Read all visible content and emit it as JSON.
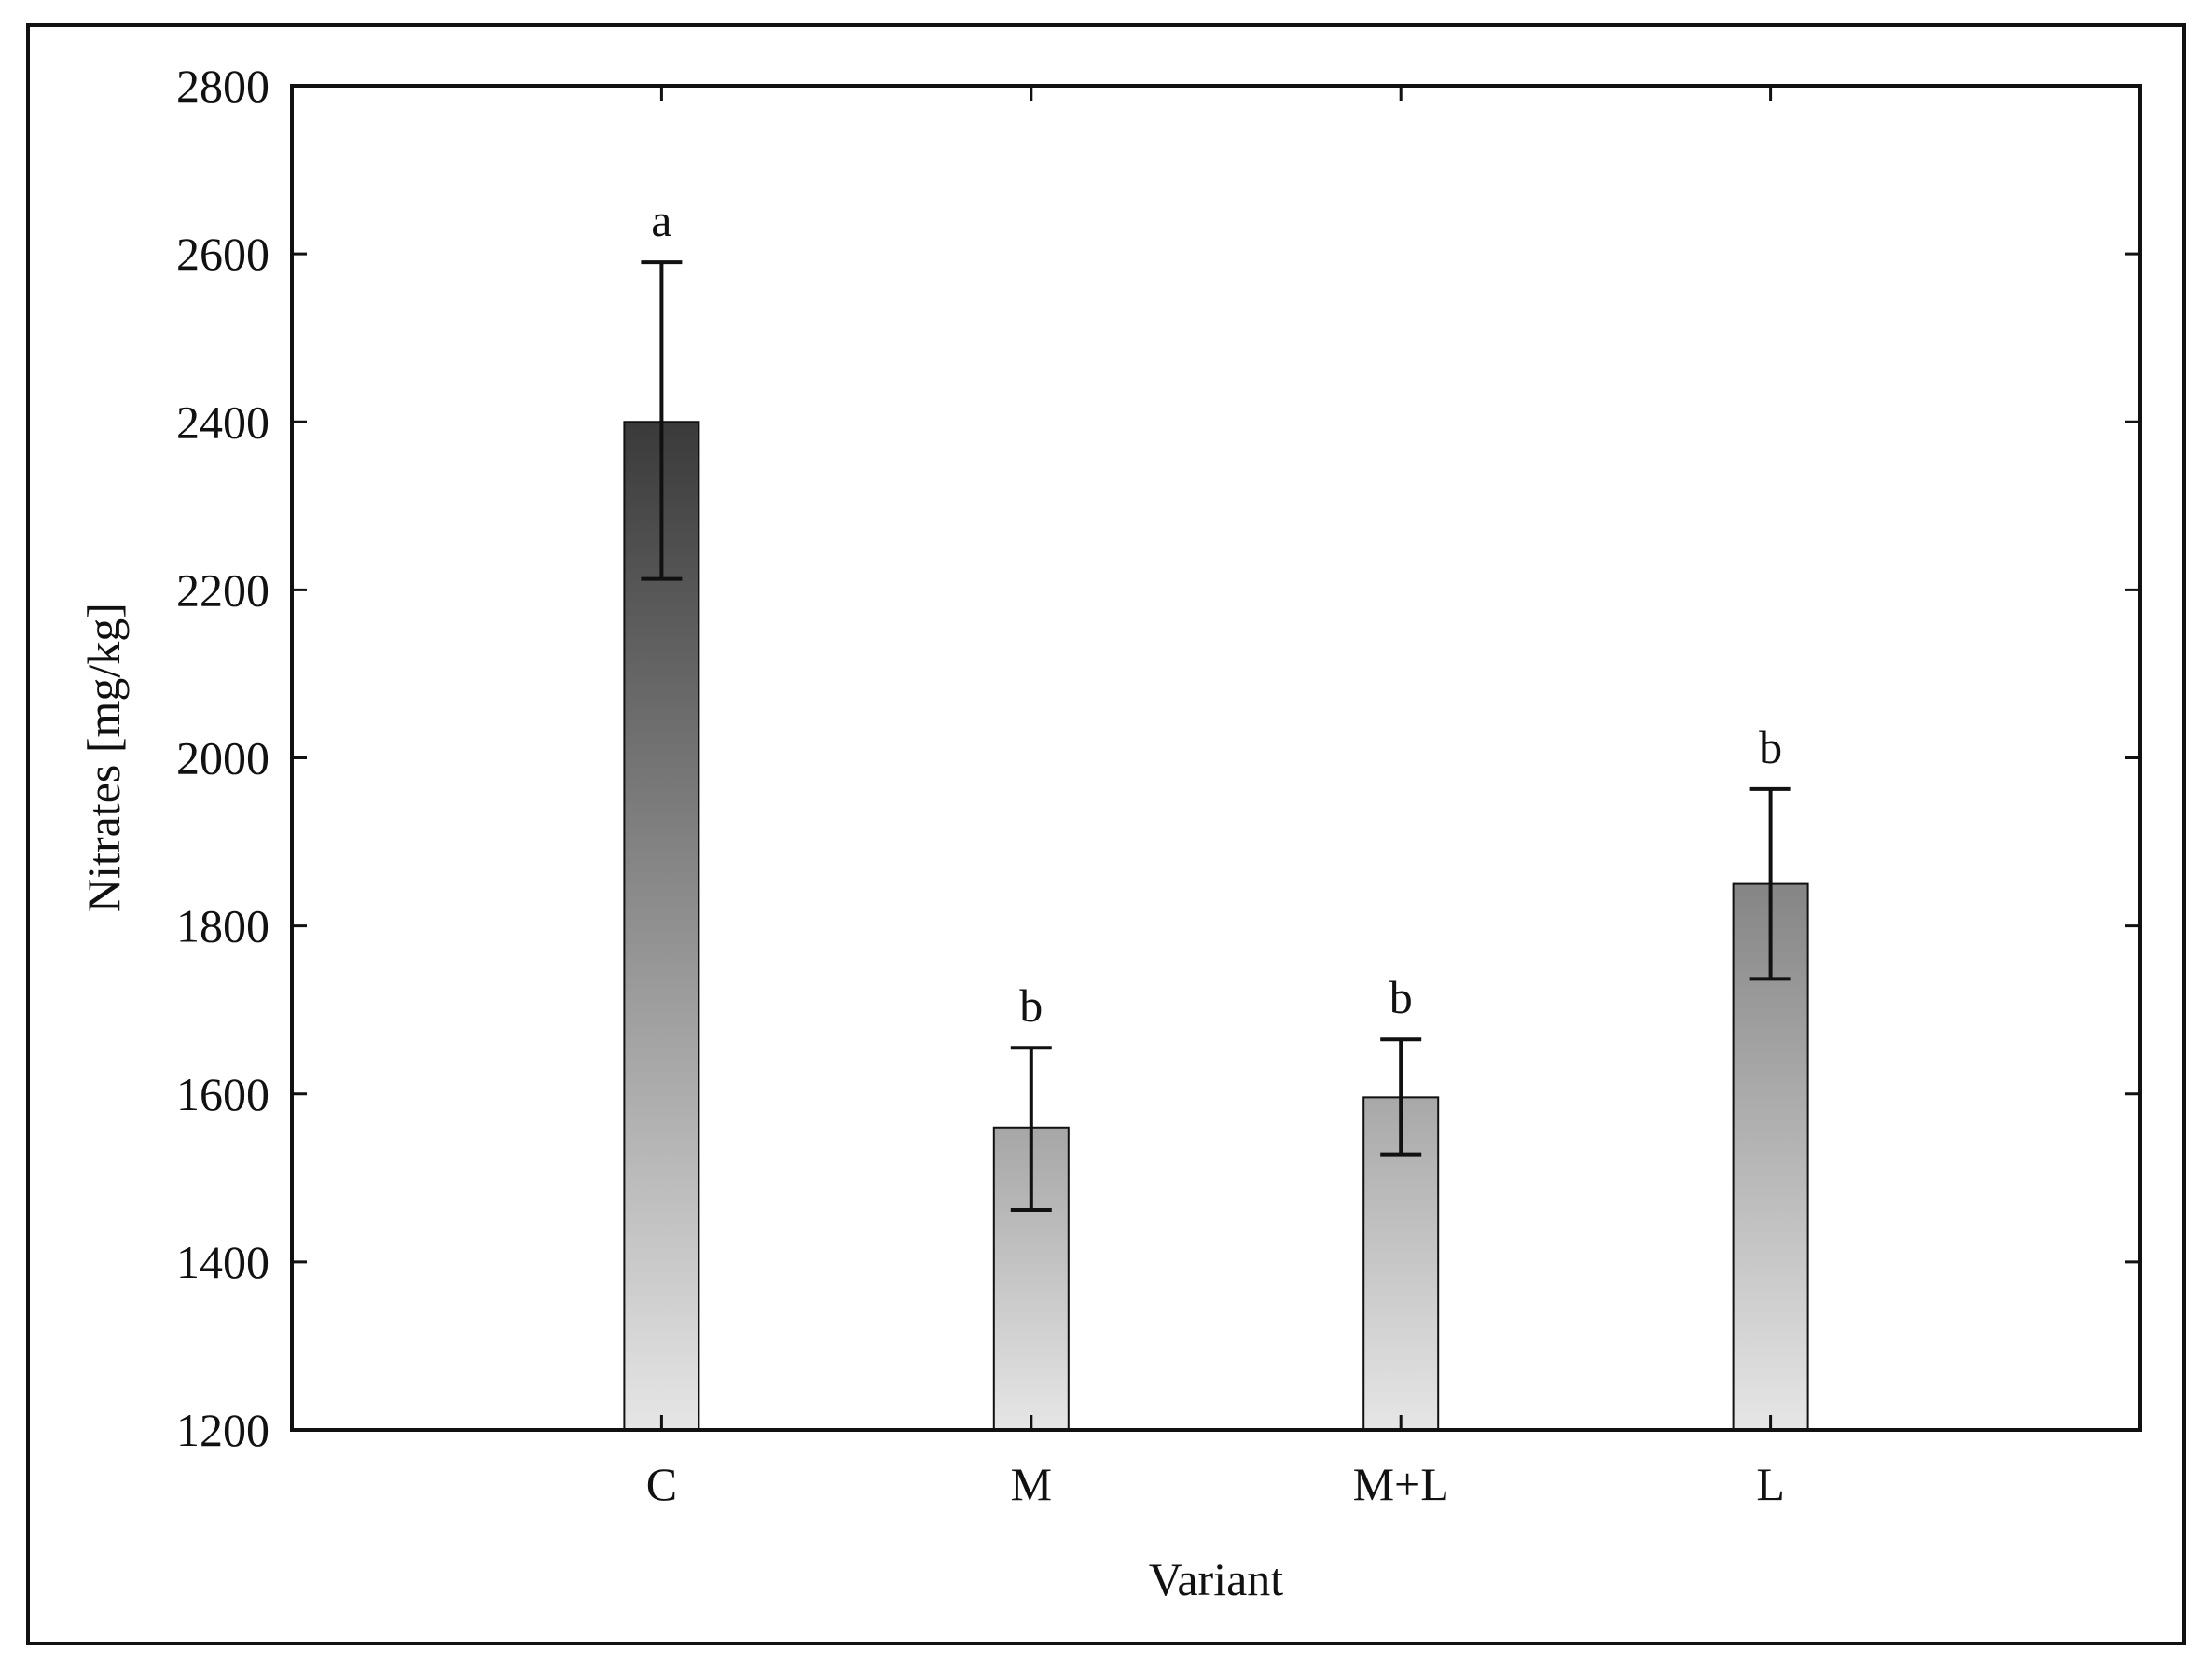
{
  "chart_data": {
    "type": "bar",
    "title": "",
    "xlabel": "Variant",
    "ylabel": "Nitrates [mg/kg]",
    "categories": [
      "C",
      "M",
      "M+L",
      "L"
    ],
    "values": [
      2400,
      1560,
      1596,
      1850
    ],
    "error_low": [
      2213,
      1462,
      1528,
      1737
    ],
    "error_high": [
      2590,
      1655,
      1665,
      1963
    ],
    "significance_labels": [
      "a",
      "b",
      "b",
      "b"
    ],
    "ylim": [
      1200,
      2800
    ],
    "yticks": [
      1200,
      1400,
      1600,
      1800,
      2000,
      2200,
      2400,
      2600,
      2800
    ],
    "ytick_labels": [
      "1200",
      "1400",
      "1600",
      "1800",
      "2000",
      "2200",
      "2400",
      "2600",
      "2800"
    ],
    "grid": false,
    "bar_fill_gradient": [
      {
        "top": "#3a3a3a",
        "bottom": "#e6e6e6"
      },
      {
        "top": "#a6a6a6",
        "bottom": "#e6e6e6"
      },
      {
        "top": "#a8a8a8",
        "bottom": "#e6e6e6"
      },
      {
        "top": "#858585",
        "bottom": "#e6e6e6"
      }
    ]
  }
}
